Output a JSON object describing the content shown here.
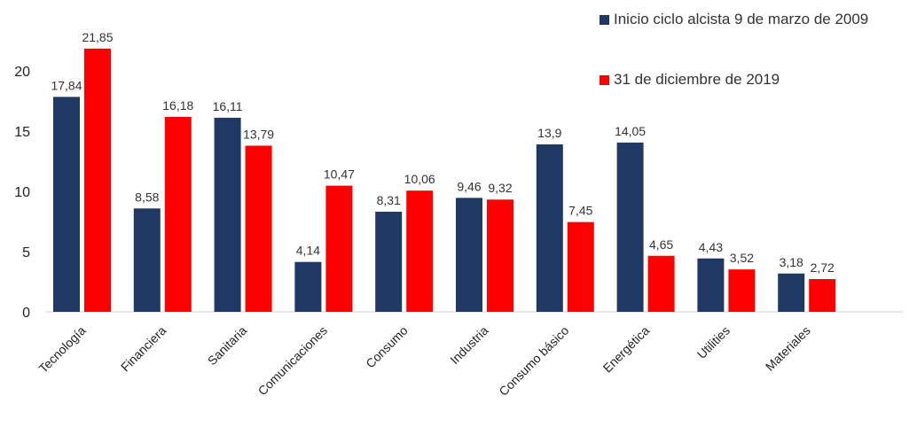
{
  "chart_data": {
    "type": "bar",
    "title": "",
    "xlabel": "",
    "ylabel": "",
    "ylim": [
      0,
      25
    ],
    "yticks": [
      "0",
      "5",
      "10",
      "15",
      "20"
    ],
    "grid": false,
    "legend_position": "top-right",
    "categories": [
      "Tecnología",
      "Financiera",
      "Sanitaria",
      "Comunicaciones",
      "Consumo",
      "Industria",
      "Consumo básico",
      "Energética",
      "Utilities",
      "Materiales"
    ],
    "series": [
      {
        "name": "Inicio ciclo alcista 9 de marzo de 2009",
        "color": "#203864",
        "values": [
          17.84,
          8.58,
          16.11,
          4.14,
          8.31,
          9.46,
          13.9,
          14.05,
          4.43,
          3.18
        ],
        "labels": [
          "17,84",
          "8,58",
          "16,11",
          "4,14",
          "8,31",
          "9,46",
          "13,9",
          "14,05",
          "4,43",
          "3,18"
        ]
      },
      {
        "name": "31 de diciembre de 2019",
        "color": "#ff0000",
        "values": [
          21.85,
          16.18,
          13.79,
          10.47,
          10.06,
          9.32,
          7.45,
          4.65,
          3.52,
          2.72
        ],
        "labels": [
          "21,85",
          "16,18",
          "13,79",
          "10,47",
          "10,06",
          "9,32",
          "7,45",
          "4,65",
          "3,52",
          "2,72"
        ]
      }
    ]
  }
}
